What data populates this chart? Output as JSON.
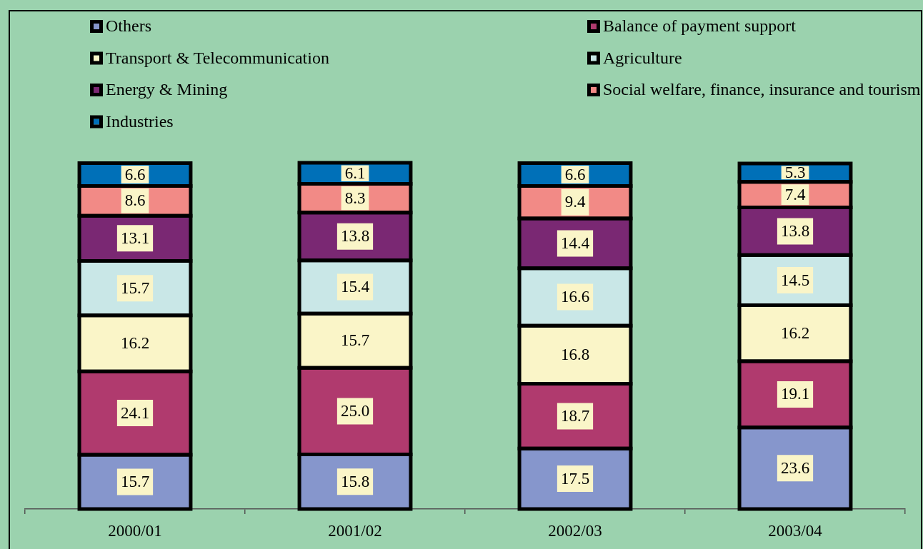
{
  "chart_data": {
    "type": "bar",
    "stacked": true,
    "legend": "top",
    "categories": [
      "2000/01",
      "2001/02",
      "2002/03",
      "2003/04"
    ],
    "ylim": [
      0,
      100.1
    ],
    "series": [
      {
        "name": "Others",
        "color": "#8696cc",
        "values": [
          15.7,
          15.8,
          17.5,
          23.6
        ],
        "value_labels": [
          "15.7",
          "15.8",
          "17.5",
          "23.6"
        ]
      },
      {
        "name": "Balance of payment support",
        "color": "#b03a6e",
        "values": [
          24.1,
          25.0,
          18.7,
          19.1
        ],
        "value_labels": [
          "24.1",
          "25.0",
          "18.7",
          "19.1"
        ]
      },
      {
        "name": "Transport & Telecommunication",
        "color": "#faf5c8",
        "values": [
          16.2,
          15.7,
          16.8,
          16.2
        ],
        "value_labels": [
          "16.2",
          "15.7",
          "16.8",
          "16.2"
        ]
      },
      {
        "name": "Agriculture",
        "color": "#c9e7e7",
        "values": [
          15.7,
          15.4,
          16.6,
          14.5
        ],
        "value_labels": [
          "15.7",
          "15.4",
          "16.6",
          "14.5"
        ]
      },
      {
        "name": "Energy & Mining",
        "color": "#7a2873",
        "values": [
          13.1,
          13.8,
          14.4,
          13.8
        ],
        "value_labels": [
          "13.1",
          "13.8",
          "14.4",
          "13.8"
        ]
      },
      {
        "name": "Social welfare, finance, insurance and tourism",
        "color": "#f28a86",
        "values": [
          8.6,
          8.3,
          9.4,
          7.4
        ],
        "value_labels": [
          "8.6",
          "8.3",
          "9.4",
          "7.4"
        ]
      },
      {
        "name": "Industries",
        "color": "#0070b8",
        "values": [
          6.6,
          6.1,
          6.6,
          5.3
        ],
        "value_labels": [
          "6.6",
          "6.1",
          "6.6",
          "5.3"
        ]
      }
    ]
  }
}
